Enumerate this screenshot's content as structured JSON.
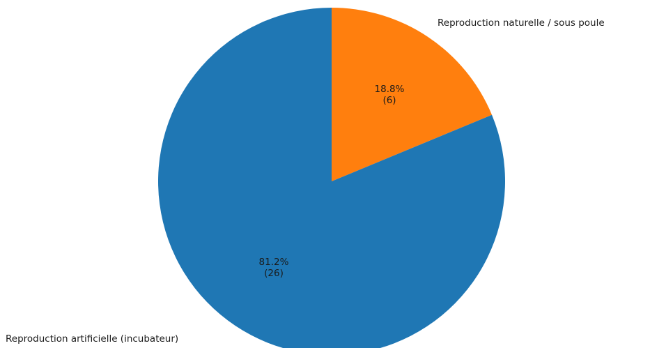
{
  "chart_data": {
    "type": "pie",
    "title": "",
    "slices": [
      {
        "label": "Reproduction naturelle / sous poule",
        "value": 6,
        "percent_label": "18.8%",
        "count_label": "(6)",
        "color": "#ff7f0e"
      },
      {
        "label": "Reproduction artificielle (incubateur)",
        "value": 26,
        "percent_label": "81.2%",
        "count_label": "(26)",
        "color": "#1f77b4"
      }
    ],
    "start_angle_deg": 90,
    "direction": "clockwise"
  }
}
